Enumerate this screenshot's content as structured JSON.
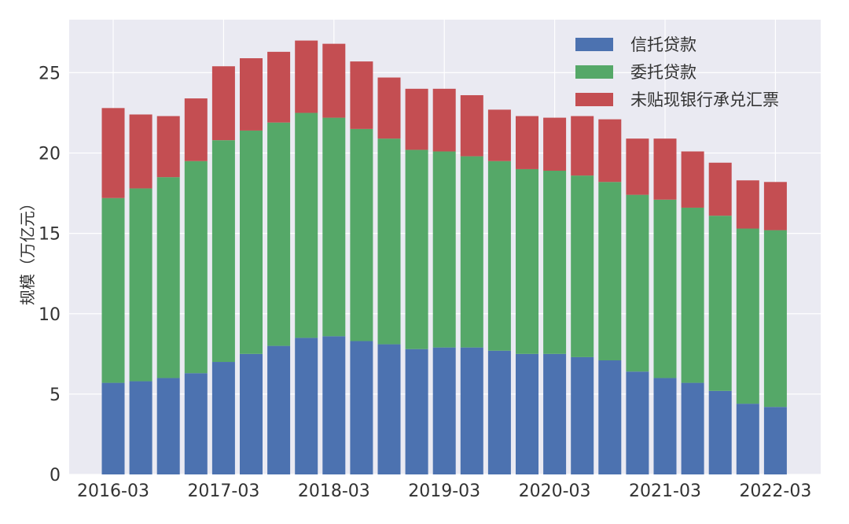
{
  "chart_data": {
    "type": "bar",
    "stacked": true,
    "title": "",
    "xlabel": "",
    "ylabel": "规模（万亿元）",
    "ylim": [
      0,
      28.3
    ],
    "yticks": [
      0,
      5,
      10,
      15,
      20,
      25
    ],
    "grid": true,
    "legend_position": "top-right",
    "categories": [
      "2016-03",
      "2016-06",
      "2016-09",
      "2016-12",
      "2017-03",
      "2017-06",
      "2017-09",
      "2017-12",
      "2018-03",
      "2018-06",
      "2018-09",
      "2018-12",
      "2019-03",
      "2019-06",
      "2019-09",
      "2019-12",
      "2020-03",
      "2020-06",
      "2020-09",
      "2020-12",
      "2021-03",
      "2021-06",
      "2021-09",
      "2021-12",
      "2022-03"
    ],
    "xtick_labels": [
      "2016-03",
      "2017-03",
      "2018-03",
      "2019-03",
      "2020-03",
      "2021-03",
      "2022-03"
    ],
    "series": [
      {
        "name": "信托贷款",
        "color": "#4C72B0",
        "values": [
          5.7,
          5.8,
          6.0,
          6.3,
          7.0,
          7.5,
          8.0,
          8.5,
          8.6,
          8.3,
          8.1,
          7.8,
          7.9,
          7.9,
          7.7,
          7.5,
          7.5,
          7.3,
          7.1,
          6.4,
          6.0,
          5.7,
          5.2,
          4.4,
          4.2
        ]
      },
      {
        "name": "委托贷款",
        "color": "#55A868",
        "values": [
          11.5,
          12.0,
          12.5,
          13.2,
          13.8,
          13.9,
          13.9,
          14.0,
          13.6,
          13.2,
          12.8,
          12.4,
          12.2,
          11.9,
          11.8,
          11.5,
          11.4,
          11.3,
          11.1,
          11.0,
          11.1,
          10.9,
          10.9,
          10.9,
          11.0
        ]
      },
      {
        "name": "未贴现银行承兑汇票",
        "color": "#C44E52",
        "values": [
          5.6,
          4.6,
          3.8,
          3.9,
          4.6,
          4.5,
          4.4,
          4.5,
          4.6,
          4.2,
          3.8,
          3.8,
          3.9,
          3.8,
          3.2,
          3.3,
          3.3,
          3.7,
          3.9,
          3.5,
          3.8,
          3.5,
          3.3,
          3.0,
          3.0
        ]
      }
    ]
  }
}
